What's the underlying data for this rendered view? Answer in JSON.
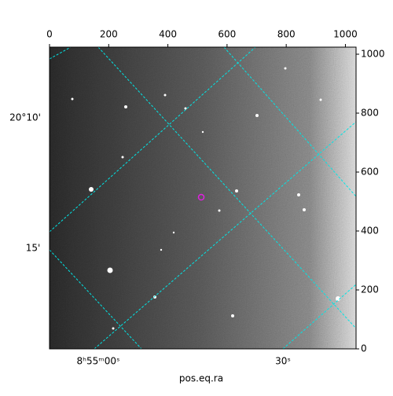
{
  "chart_data": {
    "type": "image",
    "xlabel": "pos.eq.ra",
    "xlim": [
      0,
      1036
    ],
    "xticks": [
      0,
      200,
      400,
      600,
      800,
      1000
    ],
    "ylim": [
      0,
      1024
    ],
    "yticks": [
      0,
      200,
      400,
      600,
      800,
      1000
    ],
    "ra_ticks": [
      "8ʰ55ᵐ00ˢ",
      "30ˢ"
    ],
    "dec_ticks": [
      "20°10'",
      "15'"
    ],
    "grid_color": "#00e5e5",
    "marker_color": "#e020e0"
  }
}
